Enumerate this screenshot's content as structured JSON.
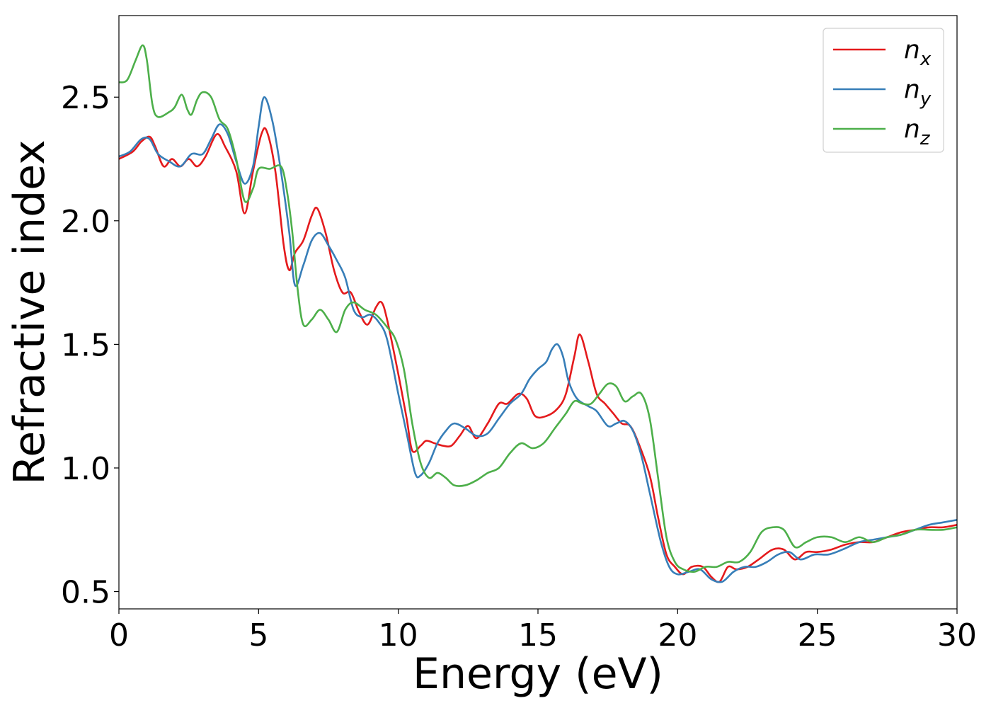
{
  "chart_data": {
    "type": "line",
    "title": "",
    "xlabel": "Energy (eV)",
    "ylabel": "Refractive index",
    "xlim": [
      0,
      30
    ],
    "ylim": [
      0.43,
      2.83
    ],
    "xticks": [
      0,
      5,
      10,
      15,
      20,
      25,
      30
    ],
    "xtick_labels": [
      "0",
      "5",
      "10",
      "15",
      "20",
      "25",
      "30"
    ],
    "yticks": [
      0.5,
      1.0,
      1.5,
      2.0,
      2.5
    ],
    "ytick_labels": [
      "0.5",
      "1.0",
      "1.5",
      "2.0",
      "2.5"
    ],
    "grid": false,
    "legend_position": "top-right",
    "series": [
      {
        "name": "n",
        "subscript": "x",
        "color": "#e41a1c",
        "points": [
          [
            0,
            2.25
          ],
          [
            0.5,
            2.28
          ],
          [
            0.8,
            2.32
          ],
          [
            1.1,
            2.34
          ],
          [
            1.3,
            2.3
          ],
          [
            1.6,
            2.22
          ],
          [
            1.9,
            2.25
          ],
          [
            2.2,
            2.22
          ],
          [
            2.5,
            2.25
          ],
          [
            2.8,
            2.22
          ],
          [
            3.1,
            2.26
          ],
          [
            3.5,
            2.35
          ],
          [
            3.8,
            2.3
          ],
          [
            4.2,
            2.2
          ],
          [
            4.5,
            2.03
          ],
          [
            4.8,
            2.2
          ],
          [
            5.1,
            2.35
          ],
          [
            5.3,
            2.36
          ],
          [
            5.6,
            2.2
          ],
          [
            5.9,
            1.9
          ],
          [
            6.1,
            1.8
          ],
          [
            6.3,
            1.87
          ],
          [
            6.6,
            1.92
          ],
          [
            6.9,
            2.02
          ],
          [
            7.1,
            2.05
          ],
          [
            7.4,
            1.95
          ],
          [
            7.7,
            1.8
          ],
          [
            8.0,
            1.71
          ],
          [
            8.3,
            1.71
          ],
          [
            8.6,
            1.63
          ],
          [
            8.9,
            1.58
          ],
          [
            9.2,
            1.65
          ],
          [
            9.4,
            1.67
          ],
          [
            9.6,
            1.6
          ],
          [
            10.0,
            1.38
          ],
          [
            10.3,
            1.2
          ],
          [
            10.5,
            1.07
          ],
          [
            10.8,
            1.09
          ],
          [
            11.0,
            1.11
          ],
          [
            11.3,
            1.1
          ],
          [
            11.6,
            1.09
          ],
          [
            11.9,
            1.09
          ],
          [
            12.2,
            1.13
          ],
          [
            12.5,
            1.17
          ],
          [
            12.8,
            1.12
          ],
          [
            13.2,
            1.18
          ],
          [
            13.6,
            1.26
          ],
          [
            13.9,
            1.26
          ],
          [
            14.3,
            1.3
          ],
          [
            14.6,
            1.28
          ],
          [
            14.9,
            1.21
          ],
          [
            15.3,
            1.21
          ],
          [
            15.7,
            1.24
          ],
          [
            16.0,
            1.3
          ],
          [
            16.3,
            1.45
          ],
          [
            16.5,
            1.54
          ],
          [
            16.8,
            1.43
          ],
          [
            17.1,
            1.3
          ],
          [
            17.4,
            1.26
          ],
          [
            17.7,
            1.22
          ],
          [
            18.0,
            1.18
          ],
          [
            18.3,
            1.17
          ],
          [
            18.6,
            1.1
          ],
          [
            19.0,
            0.97
          ],
          [
            19.3,
            0.8
          ],
          [
            19.6,
            0.65
          ],
          [
            19.9,
            0.6
          ],
          [
            20.2,
            0.57
          ],
          [
            20.5,
            0.6
          ],
          [
            20.9,
            0.6
          ],
          [
            21.2,
            0.56
          ],
          [
            21.5,
            0.54
          ],
          [
            21.8,
            0.6
          ],
          [
            22.1,
            0.59
          ],
          [
            22.5,
            0.6
          ],
          [
            22.9,
            0.63
          ],
          [
            23.4,
            0.67
          ],
          [
            23.8,
            0.67
          ],
          [
            24.2,
            0.63
          ],
          [
            24.6,
            0.66
          ],
          [
            25.0,
            0.66
          ],
          [
            25.5,
            0.67
          ],
          [
            26.0,
            0.69
          ],
          [
            26.5,
            0.7
          ],
          [
            27.0,
            0.7
          ],
          [
            27.5,
            0.72
          ],
          [
            28.0,
            0.74
          ],
          [
            28.5,
            0.75
          ],
          [
            29.0,
            0.76
          ],
          [
            29.5,
            0.76
          ],
          [
            30.0,
            0.77
          ]
        ]
      },
      {
        "name": "n",
        "subscript": "y",
        "color": "#377eb8",
        "points": [
          [
            0,
            2.26
          ],
          [
            0.4,
            2.28
          ],
          [
            0.8,
            2.33
          ],
          [
            1.1,
            2.33
          ],
          [
            1.4,
            2.27
          ],
          [
            1.8,
            2.24
          ],
          [
            2.2,
            2.22
          ],
          [
            2.6,
            2.27
          ],
          [
            3.0,
            2.27
          ],
          [
            3.3,
            2.33
          ],
          [
            3.6,
            2.39
          ],
          [
            3.9,
            2.35
          ],
          [
            4.2,
            2.24
          ],
          [
            4.5,
            2.15
          ],
          [
            4.8,
            2.22
          ],
          [
            5.0,
            2.38
          ],
          [
            5.2,
            2.5
          ],
          [
            5.5,
            2.4
          ],
          [
            5.8,
            2.2
          ],
          [
            6.1,
            1.95
          ],
          [
            6.3,
            1.74
          ],
          [
            6.6,
            1.82
          ],
          [
            6.9,
            1.92
          ],
          [
            7.2,
            1.95
          ],
          [
            7.5,
            1.9
          ],
          [
            7.8,
            1.84
          ],
          [
            8.1,
            1.77
          ],
          [
            8.4,
            1.64
          ],
          [
            8.7,
            1.61
          ],
          [
            9.0,
            1.62
          ],
          [
            9.3,
            1.59
          ],
          [
            9.6,
            1.52
          ],
          [
            10.0,
            1.3
          ],
          [
            10.3,
            1.14
          ],
          [
            10.6,
            0.98
          ],
          [
            10.8,
            0.97
          ],
          [
            11.1,
            1.02
          ],
          [
            11.4,
            1.1
          ],
          [
            11.7,
            1.15
          ],
          [
            12.0,
            1.18
          ],
          [
            12.4,
            1.16
          ],
          [
            12.8,
            1.13
          ],
          [
            13.2,
            1.14
          ],
          [
            13.6,
            1.2
          ],
          [
            14.0,
            1.26
          ],
          [
            14.4,
            1.3
          ],
          [
            14.7,
            1.36
          ],
          [
            15.0,
            1.4
          ],
          [
            15.3,
            1.43
          ],
          [
            15.5,
            1.48
          ],
          [
            15.7,
            1.5
          ],
          [
            15.9,
            1.45
          ],
          [
            16.1,
            1.35
          ],
          [
            16.4,
            1.28
          ],
          [
            16.8,
            1.25
          ],
          [
            17.1,
            1.23
          ],
          [
            17.5,
            1.17
          ],
          [
            17.8,
            1.18
          ],
          [
            18.1,
            1.19
          ],
          [
            18.4,
            1.15
          ],
          [
            18.7,
            1.05
          ],
          [
            19.0,
            0.9
          ],
          [
            19.4,
            0.7
          ],
          [
            19.7,
            0.6
          ],
          [
            20.0,
            0.57
          ],
          [
            20.4,
            0.58
          ],
          [
            20.8,
            0.59
          ],
          [
            21.2,
            0.55
          ],
          [
            21.6,
            0.54
          ],
          [
            22.0,
            0.58
          ],
          [
            22.4,
            0.6
          ],
          [
            22.8,
            0.6
          ],
          [
            23.2,
            0.62
          ],
          [
            23.6,
            0.65
          ],
          [
            24.0,
            0.66
          ],
          [
            24.4,
            0.63
          ],
          [
            24.9,
            0.65
          ],
          [
            25.4,
            0.65
          ],
          [
            25.9,
            0.67
          ],
          [
            26.5,
            0.7
          ],
          [
            27.0,
            0.71
          ],
          [
            27.5,
            0.72
          ],
          [
            28.0,
            0.73
          ],
          [
            28.5,
            0.75
          ],
          [
            29.0,
            0.77
          ],
          [
            29.5,
            0.78
          ],
          [
            30.0,
            0.79
          ]
        ]
      },
      {
        "name": "n",
        "subscript": "z",
        "color": "#4daf4a",
        "points": [
          [
            0,
            2.56
          ],
          [
            0.3,
            2.57
          ],
          [
            0.6,
            2.65
          ],
          [
            0.85,
            2.71
          ],
          [
            1.0,
            2.65
          ],
          [
            1.2,
            2.47
          ],
          [
            1.4,
            2.42
          ],
          [
            1.8,
            2.44
          ],
          [
            2.0,
            2.46
          ],
          [
            2.25,
            2.51
          ],
          [
            2.45,
            2.45
          ],
          [
            2.6,
            2.43
          ],
          [
            2.8,
            2.49
          ],
          [
            3.0,
            2.52
          ],
          [
            3.3,
            2.5
          ],
          [
            3.6,
            2.41
          ],
          [
            3.9,
            2.37
          ],
          [
            4.2,
            2.25
          ],
          [
            4.5,
            2.08
          ],
          [
            4.8,
            2.13
          ],
          [
            5.0,
            2.21
          ],
          [
            5.4,
            2.21
          ],
          [
            5.8,
            2.22
          ],
          [
            6.0,
            2.13
          ],
          [
            6.2,
            1.96
          ],
          [
            6.4,
            1.72
          ],
          [
            6.6,
            1.58
          ],
          [
            6.9,
            1.6
          ],
          [
            7.2,
            1.64
          ],
          [
            7.5,
            1.6
          ],
          [
            7.8,
            1.55
          ],
          [
            8.1,
            1.64
          ],
          [
            8.4,
            1.67
          ],
          [
            8.8,
            1.64
          ],
          [
            9.2,
            1.62
          ],
          [
            9.6,
            1.57
          ],
          [
            9.9,
            1.52
          ],
          [
            10.2,
            1.4
          ],
          [
            10.5,
            1.18
          ],
          [
            10.8,
            1.02
          ],
          [
            11.1,
            0.96
          ],
          [
            11.4,
            0.98
          ],
          [
            11.7,
            0.96
          ],
          [
            12.0,
            0.93
          ],
          [
            12.4,
            0.93
          ],
          [
            12.8,
            0.95
          ],
          [
            13.2,
            0.98
          ],
          [
            13.6,
            1.0
          ],
          [
            14.0,
            1.06
          ],
          [
            14.4,
            1.1
          ],
          [
            14.8,
            1.08
          ],
          [
            15.2,
            1.1
          ],
          [
            15.6,
            1.16
          ],
          [
            16.0,
            1.22
          ],
          [
            16.3,
            1.27
          ],
          [
            16.6,
            1.26
          ],
          [
            16.9,
            1.26
          ],
          [
            17.2,
            1.3
          ],
          [
            17.5,
            1.34
          ],
          [
            17.8,
            1.33
          ],
          [
            18.1,
            1.27
          ],
          [
            18.4,
            1.29
          ],
          [
            18.7,
            1.3
          ],
          [
            19.0,
            1.2
          ],
          [
            19.3,
            0.96
          ],
          [
            19.6,
            0.72
          ],
          [
            19.9,
            0.62
          ],
          [
            20.2,
            0.59
          ],
          [
            20.6,
            0.58
          ],
          [
            21.0,
            0.6
          ],
          [
            21.4,
            0.6
          ],
          [
            21.8,
            0.62
          ],
          [
            22.2,
            0.62
          ],
          [
            22.6,
            0.66
          ],
          [
            23.0,
            0.74
          ],
          [
            23.4,
            0.76
          ],
          [
            23.8,
            0.75
          ],
          [
            24.2,
            0.68
          ],
          [
            24.6,
            0.7
          ],
          [
            25.0,
            0.72
          ],
          [
            25.5,
            0.72
          ],
          [
            26.0,
            0.7
          ],
          [
            26.5,
            0.72
          ],
          [
            27.0,
            0.7
          ],
          [
            27.5,
            0.72
          ],
          [
            28.0,
            0.73
          ],
          [
            28.5,
            0.75
          ],
          [
            29.0,
            0.75
          ],
          [
            29.5,
            0.75
          ],
          [
            30.0,
            0.76
          ]
        ]
      }
    ]
  }
}
